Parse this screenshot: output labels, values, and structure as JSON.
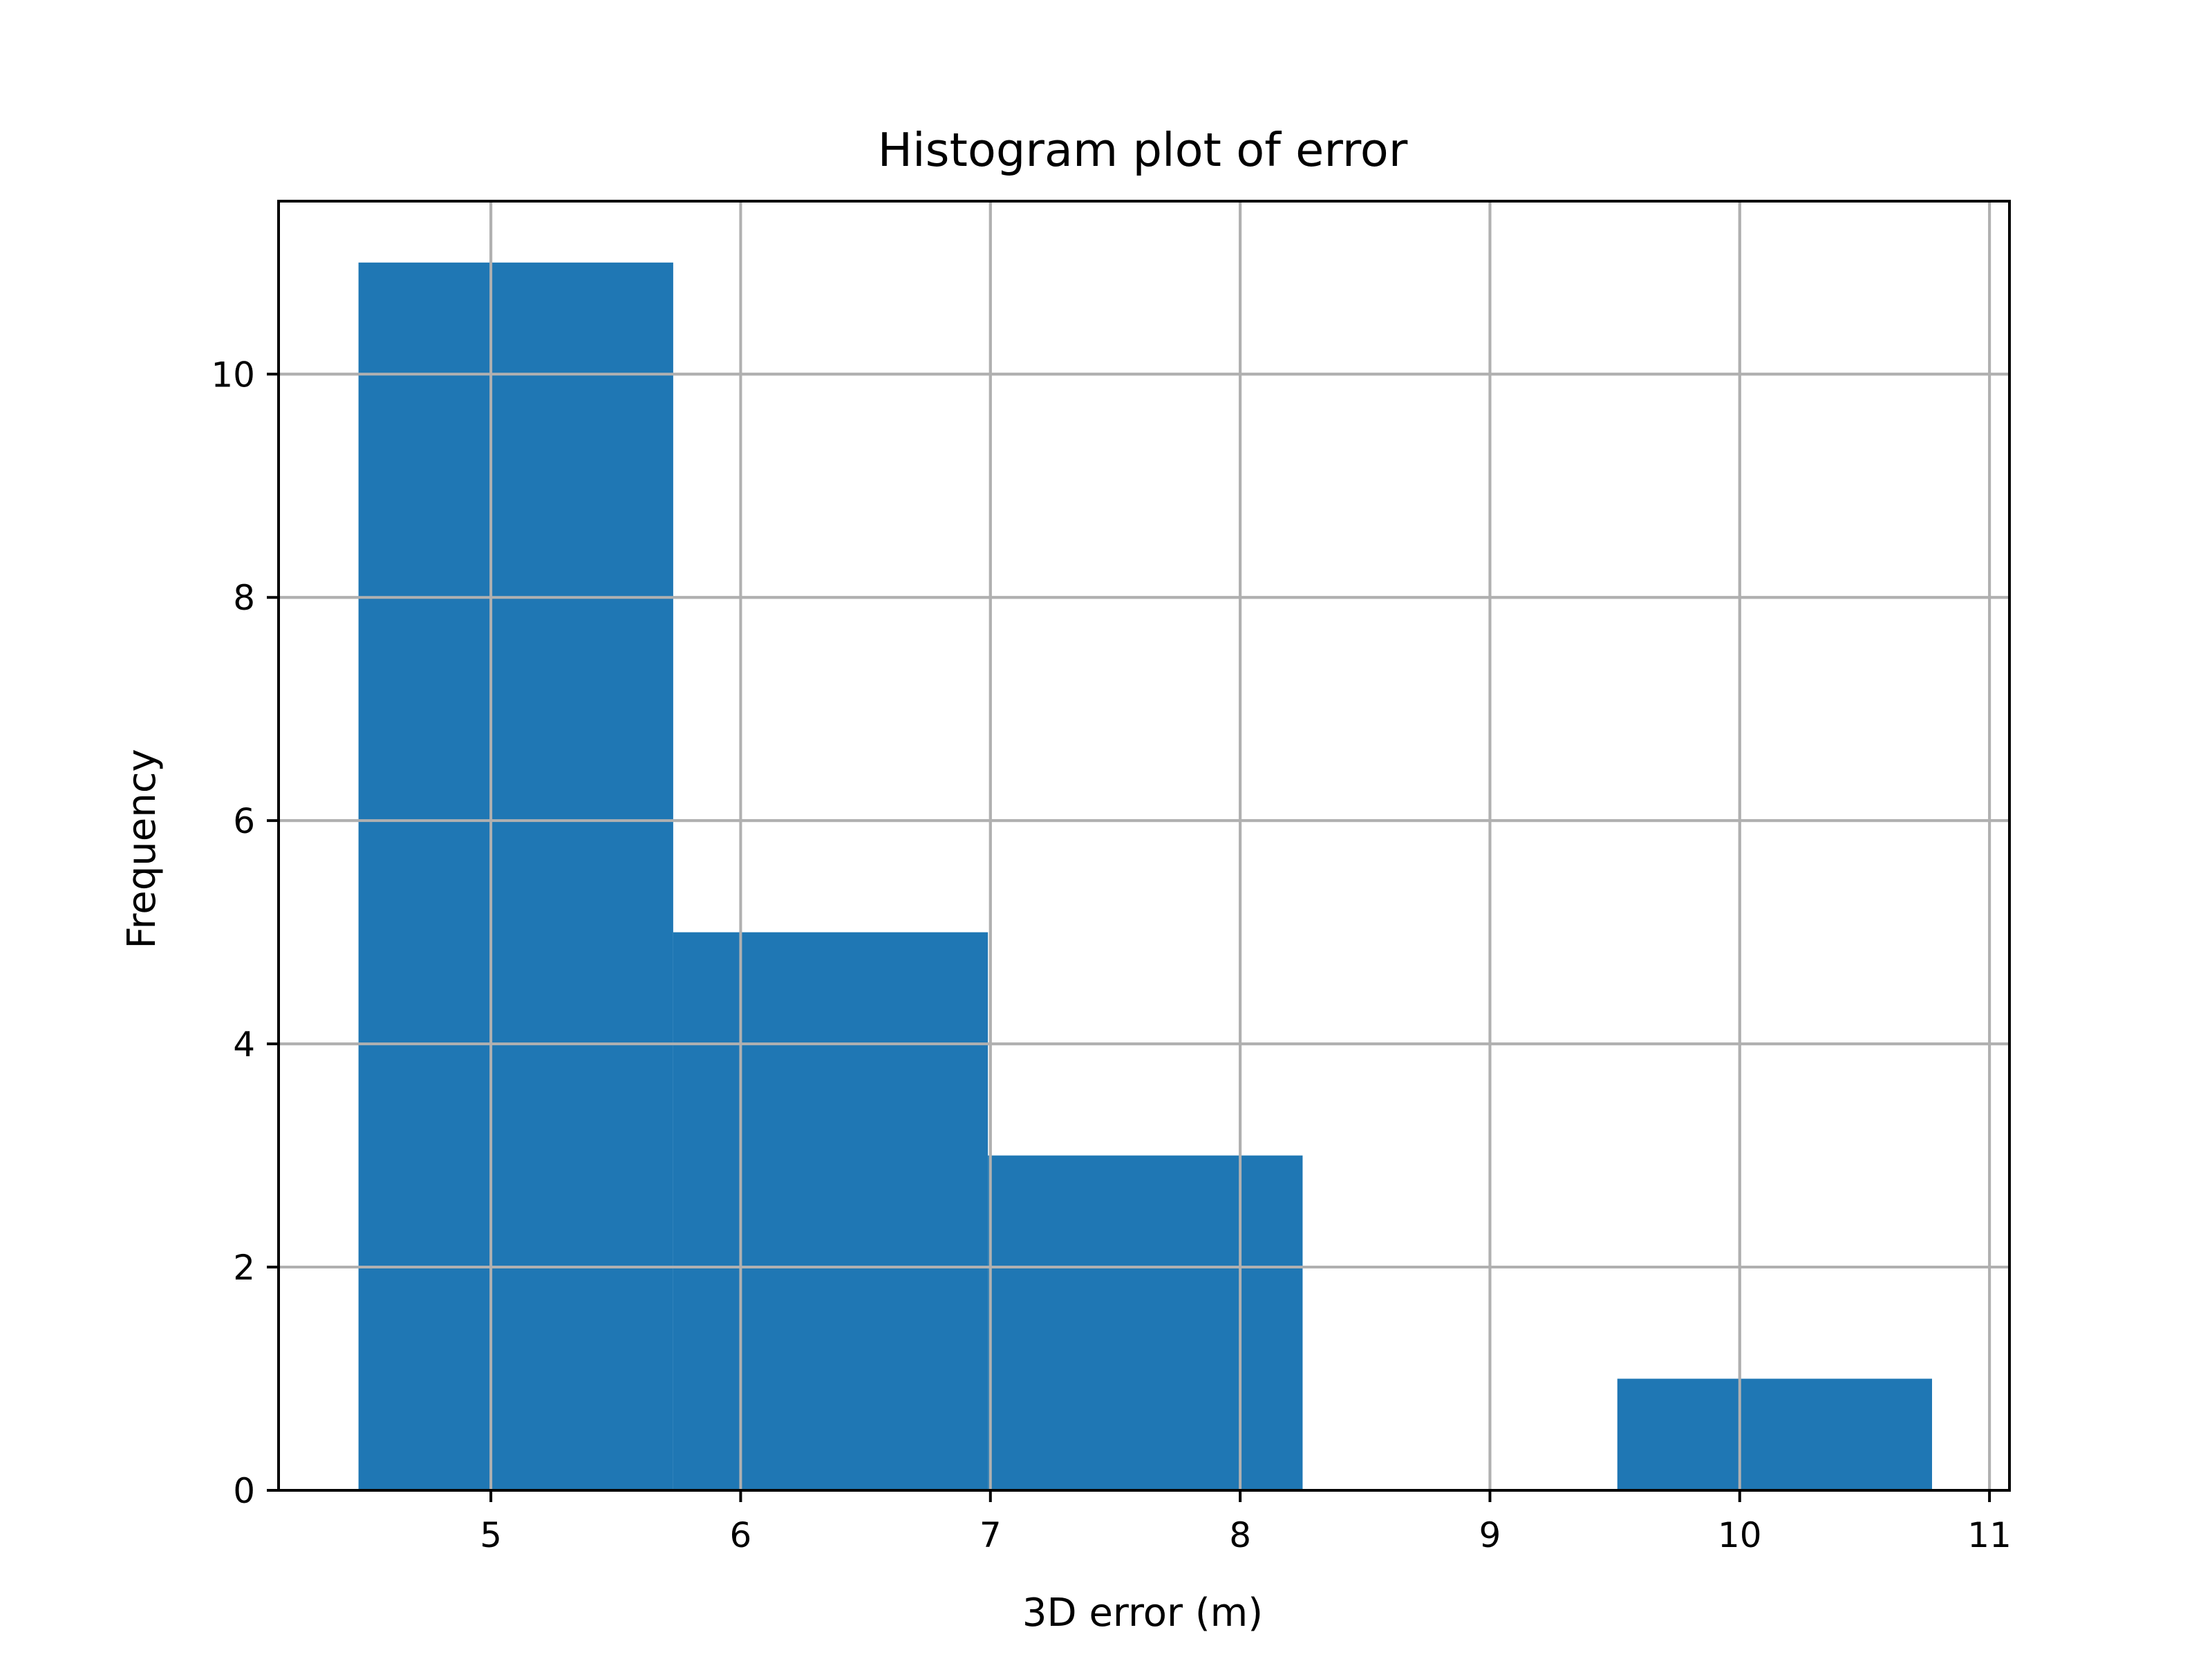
{
  "chart_data": {
    "type": "bar",
    "title": "Histogram plot of error",
    "xlabel": "3D error (m)",
    "ylabel": "Frequency",
    "bins": [
      {
        "x0": 4.47,
        "x1": 5.73,
        "count": 11
      },
      {
        "x0": 5.73,
        "x1": 6.99,
        "count": 5
      },
      {
        "x0": 6.99,
        "x1": 8.25,
        "count": 3
      },
      {
        "x0": 8.25,
        "x1": 9.51,
        "count": 0
      },
      {
        "x0": 9.51,
        "x1": 10.77,
        "count": 1
      }
    ],
    "xlim": [
      4.15,
      11.08
    ],
    "ylim": [
      0,
      11.55
    ],
    "xticks": [
      5,
      6,
      7,
      8,
      9,
      10,
      11
    ],
    "xtick_labels": [
      "5",
      "6",
      "7",
      "8",
      "9",
      "10",
      "11"
    ],
    "yticks": [
      0,
      2,
      4,
      6,
      8,
      10
    ],
    "ytick_labels": [
      "0",
      "2",
      "4",
      "6",
      "8",
      "10"
    ],
    "grid": true,
    "colors": {
      "bar": "#1f77b4",
      "grid": "#b0b0b0",
      "axis": "#000000"
    }
  }
}
